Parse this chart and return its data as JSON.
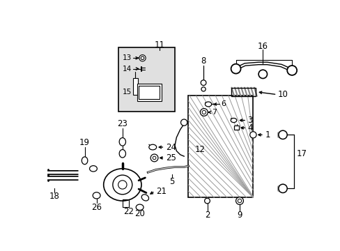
{
  "bg_color": "#ffffff",
  "fig_width": 4.89,
  "fig_height": 3.6,
  "dpi": 100,
  "lc": "#000000",
  "box_fill": "#e0e0e0",
  "radiator_hatch_color": "#999999"
}
